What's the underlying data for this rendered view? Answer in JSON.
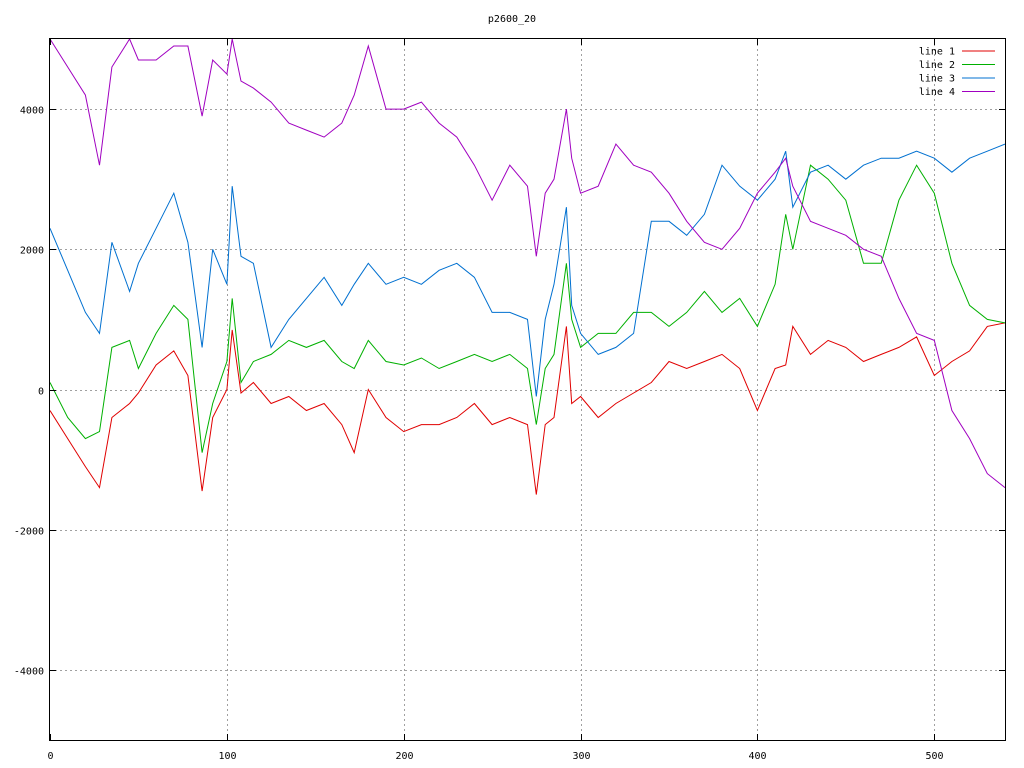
{
  "chart_data": {
    "type": "line",
    "title": "p2600_20",
    "xlabel": "",
    "ylabel": "",
    "xlim": [
      0,
      540
    ],
    "ylim": [
      -5000,
      5000
    ],
    "grid": true,
    "legend_position": "top-right",
    "x_ticks": [
      0,
      100,
      200,
      300,
      400,
      500
    ],
    "y_ticks": [
      -4000,
      -2000,
      0,
      2000,
      4000
    ],
    "x_tick_labels": [
      "0",
      "100",
      "200",
      "300",
      "400",
      "500"
    ],
    "y_tick_labels": [
      "-4000",
      "-2000",
      "0",
      "2000",
      "4000"
    ],
    "x": [
      0,
      10,
      20,
      28,
      35,
      45,
      50,
      60,
      70,
      78,
      86,
      92,
      100,
      103,
      108,
      115,
      125,
      135,
      145,
      155,
      165,
      172,
      180,
      190,
      200,
      210,
      220,
      230,
      240,
      250,
      260,
      270,
      275,
      280,
      285,
      292,
      295,
      300,
      310,
      320,
      330,
      340,
      350,
      360,
      370,
      380,
      390,
      400,
      410,
      416,
      420,
      430,
      440,
      450,
      460,
      470,
      480,
      490,
      500,
      510,
      520,
      530,
      540
    ],
    "series": [
      {
        "name": "line 1",
        "color": "#e00000",
        "values": [
          -300,
          -700,
          -1100,
          -1400,
          -400,
          -200,
          -50,
          350,
          550,
          200,
          -1450,
          -400,
          0,
          850,
          -50,
          100,
          -200,
          -100,
          -300,
          -200,
          -500,
          -900,
          0,
          -400,
          -600,
          -500,
          -500,
          -400,
          -200,
          -500,
          -400,
          -500,
          -1500,
          -500,
          -400,
          900,
          -200,
          -100,
          -400,
          -200,
          -50,
          100,
          400,
          300,
          400,
          500,
          300,
          -300,
          300,
          350,
          900,
          500,
          700,
          600,
          400,
          500,
          600,
          750,
          200,
          400,
          550,
          900,
          950
        ]
      },
      {
        "name": "line 2",
        "color": "#00b000",
        "values": [
          100,
          -400,
          -700,
          -600,
          600,
          700,
          300,
          800,
          1200,
          1000,
          -900,
          -200,
          400,
          1300,
          100,
          400,
          500,
          700,
          600,
          700,
          400,
          300,
          700,
          400,
          350,
          450,
          300,
          400,
          500,
          400,
          500,
          300,
          -500,
          300,
          500,
          1800,
          1000,
          600,
          800,
          800,
          1100,
          1100,
          900,
          1100,
          1400,
          1100,
          1300,
          900,
          1500,
          2500,
          2000,
          3200,
          3000,
          2700,
          1800,
          1800,
          2700,
          3200,
          2800,
          1800,
          1200,
          1000,
          950
        ]
      },
      {
        "name": "line 3",
        "color": "#0070d0",
        "values": [
          2300,
          1700,
          1100,
          800,
          2100,
          1400,
          1800,
          2300,
          2800,
          2100,
          600,
          2000,
          1500,
          2900,
          1900,
          1800,
          600,
          1000,
          1300,
          1600,
          1200,
          1500,
          1800,
          1500,
          1600,
          1500,
          1700,
          1800,
          1600,
          1100,
          1100,
          1000,
          -100,
          1000,
          1500,
          2600,
          1200,
          800,
          500,
          600,
          800,
          2400,
          2400,
          2200,
          2500,
          3200,
          2900,
          2700,
          3000,
          3400,
          2600,
          3100,
          3200,
          3000,
          3200,
          3300,
          3300,
          3400,
          3300,
          3100,
          3300,
          3400,
          3500
        ]
      },
      {
        "name": "line 4",
        "color": "#a000c0",
        "values": [
          5000,
          4600,
          4200,
          3200,
          4600,
          5000,
          4700,
          4700,
          4900,
          4900,
          3900,
          4700,
          4500,
          5000,
          4400,
          4300,
          4100,
          3800,
          3700,
          3600,
          3800,
          4200,
          4900,
          4000,
          4000,
          4100,
          3800,
          3600,
          3200,
          2700,
          3200,
          2900,
          1900,
          2800,
          3000,
          4000,
          3300,
          2800,
          2900,
          3500,
          3200,
          3100,
          2800,
          2400,
          2100,
          2000,
          2300,
          2800,
          3100,
          3300,
          2900,
          2400,
          2300,
          2200,
          2000,
          1900,
          1300,
          800,
          700,
          -300,
          -700,
          -1200,
          -1400
        ]
      }
    ]
  }
}
